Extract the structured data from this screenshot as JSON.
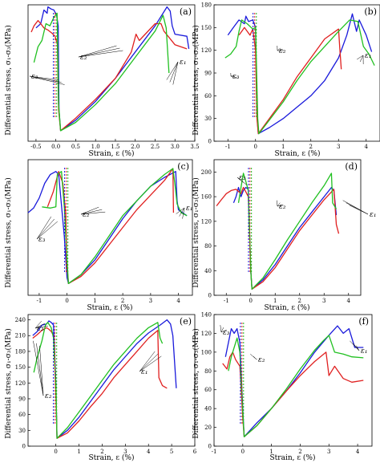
{
  "figure": {
    "ylabel": "Differential stress, σ₁-σ₃(MPa)",
    "xlabel": "Strain, ε (%)"
  },
  "chart_data": [
    {
      "type": "line",
      "label": "(a)",
      "xlim": [
        -0.7,
        3.5
      ],
      "ylim": [
        0,
        130
      ],
      "xticks": [
        -0.5,
        0.0,
        0.5,
        1.0,
        1.5,
        2.0,
        2.5,
        3.0,
        3.5
      ],
      "xtick_labels": [
        "-0.5",
        "0.0",
        "0.5",
        "1.0",
        "1.5",
        "2.0",
        "2.5",
        "3.0",
        "3.5"
      ],
      "yticks": [],
      "ytick_labels": [],
      "annotations": [
        "ε₂",
        "ε₃",
        "ε₁"
      ],
      "series": [
        {
          "color": "#1a1adb",
          "x": [
            -0.5,
            -0.38,
            -0.3,
            -0.22,
            -0.2,
            -0.12,
            -0.05,
            0.02,
            0.06,
            0.08,
            0.12,
            0.5,
            1.0,
            1.5,
            2.0,
            2.5,
            2.8,
            2.88,
            2.93,
            3.0,
            3.3,
            3.35
          ],
          "y": [
            108,
            112,
            125,
            122,
            128,
            126,
            125,
            120,
            110,
            30,
            10,
            20,
            38,
            60,
            85,
            110,
            128,
            124,
            110,
            102,
            100,
            88
          ]
        },
        {
          "color": "#e02020",
          "x": [
            -0.62,
            -0.55,
            -0.45,
            -0.38,
            -0.3,
            -0.2,
            -0.1,
            -0.02,
            0.04,
            0.07,
            0.12,
            0.5,
            1.0,
            1.5,
            1.9,
            2.02,
            2.1,
            2.5,
            2.65,
            2.72,
            3.0,
            3.3
          ],
          "y": [
            104,
            110,
            115,
            112,
            108,
            106,
            103,
            100,
            92,
            30,
            10,
            22,
            40,
            60,
            85,
            102,
            96,
            112,
            112,
            105,
            92,
            88
          ]
        },
        {
          "color": "#20c020",
          "x": [
            -0.55,
            -0.45,
            -0.35,
            -0.25,
            -0.15,
            -0.05,
            0.03,
            0.07,
            0.12,
            0.5,
            1.0,
            1.5,
            2.0,
            2.5,
            2.7,
            2.78,
            2.85
          ],
          "y": [
            75,
            90,
            96,
            112,
            110,
            118,
            122,
            35,
            10,
            18,
            35,
            55,
            80,
            105,
            120,
            108,
            65
          ]
        }
      ]
    },
    {
      "type": "line",
      "label": "(b)",
      "xlim": [
        -1.5,
        4.5
      ],
      "ylim": [
        0,
        180
      ],
      "xticks": [
        -1,
        0,
        1,
        2,
        3,
        4
      ],
      "xtick_labels": [
        "-1",
        "0",
        "1",
        "2",
        "3",
        "4"
      ],
      "yticks": [
        0,
        30,
        60,
        90,
        120,
        150,
        180
      ],
      "ytick_labels": [
        "0",
        "30",
        "60",
        "90",
        "120",
        "150",
        "180"
      ],
      "annotations": [
        "ε₂",
        "ε₃",
        "ε₁"
      ],
      "series": [
        {
          "color": "#1a1adb",
          "x": [
            -1.0,
            -0.8,
            -0.6,
            -0.4,
            -0.35,
            -0.25,
            -0.1,
            0.0,
            0.05,
            0.1,
            0.5,
            1.0,
            1.5,
            2.0,
            2.5,
            3.0,
            3.3,
            3.5,
            3.65,
            3.75,
            4.0,
            4.2
          ],
          "y": [
            140,
            150,
            160,
            155,
            165,
            158,
            160,
            150,
            35,
            10,
            18,
            30,
            45,
            60,
            80,
            110,
            140,
            168,
            145,
            160,
            140,
            118
          ]
        },
        {
          "color": "#e02020",
          "x": [
            -0.6,
            -0.5,
            -0.4,
            -0.3,
            -0.2,
            -0.1,
            0.0,
            0.05,
            0.1,
            0.5,
            1.0,
            1.5,
            2.0,
            2.5,
            3.0,
            3.05,
            3.1
          ],
          "y": [
            140,
            145,
            150,
            145,
            140,
            148,
            120,
            30,
            10,
            30,
            55,
            85,
            110,
            135,
            148,
            120,
            95
          ]
        },
        {
          "color": "#20c020",
          "x": [
            -1.1,
            -0.9,
            -0.7,
            -0.6,
            -0.5,
            -0.3,
            -0.1,
            0.0,
            0.08,
            0.12,
            0.5,
            1.0,
            1.5,
            2.0,
            2.5,
            3.0,
            3.4,
            3.7,
            3.9,
            4.1,
            4.3
          ],
          "y": [
            110,
            115,
            125,
            145,
            160,
            155,
            148,
            150,
            30,
            10,
            28,
            52,
            80,
            105,
            125,
            145,
            160,
            158,
            125,
            115,
            100
          ]
        }
      ]
    },
    {
      "type": "line",
      "label": "(c)",
      "xlim": [
        -1.4,
        4.5
      ],
      "ylim": [
        0,
        230
      ],
      "xticks": [
        -1,
        0,
        1,
        2,
        3,
        4
      ],
      "xtick_labels": [
        "-1",
        "0",
        "1",
        "2",
        "3",
        "4"
      ],
      "yticks": [],
      "ytick_labels": [],
      "annotations": [
        "ε₂",
        "ε₃",
        "ε₁"
      ],
      "series": [
        {
          "color": "#1a1adb",
          "x": [
            -1.4,
            -1.2,
            -1.0,
            -0.8,
            -0.6,
            -0.4,
            -0.3,
            -0.1,
            0.0,
            0.05,
            0.5,
            1.0,
            1.5,
            2.0,
            2.5,
            3.0,
            3.5,
            3.9,
            3.95,
            4.0,
            4.3
          ],
          "y": [
            140,
            148,
            165,
            190,
            205,
            210,
            205,
            100,
            30,
            20,
            35,
            60,
            95,
            130,
            160,
            185,
            200,
            210,
            160,
            145,
            135
          ]
        },
        {
          "color": "#e02020",
          "x": [
            -0.7,
            -0.5,
            -0.3,
            -0.15,
            -0.05,
            0.0,
            0.05,
            0.5,
            1.0,
            1.5,
            2.0,
            2.5,
            3.0,
            3.5,
            3.8,
            3.82
          ],
          "y": [
            150,
            175,
            210,
            190,
            140,
            50,
            20,
            32,
            55,
            85,
            115,
            145,
            170,
            195,
            215,
            140
          ]
        },
        {
          "color": "#20c020",
          "x": [
            -0.9,
            -0.6,
            -0.4,
            -0.35,
            -0.2,
            -0.1,
            0.0,
            0.05,
            0.5,
            1.0,
            1.5,
            2.0,
            2.5,
            3.0,
            3.5,
            3.8,
            3.88,
            3.95,
            4.1,
            4.3
          ],
          "y": [
            150,
            148,
            150,
            205,
            210,
            150,
            60,
            20,
            35,
            65,
            100,
            135,
            160,
            185,
            205,
            215,
            185,
            155,
            140,
            135
          ]
        }
      ]
    },
    {
      "type": "line",
      "label": "(d)",
      "xlim": [
        -1.5,
        4.5
      ],
      "ylim": [
        0,
        220
      ],
      "xticks": [
        -1,
        0,
        1,
        2,
        3,
        4
      ],
      "xtick_labels": [
        "-1",
        "0",
        "1",
        "2",
        "3",
        "4"
      ],
      "yticks": [
        0,
        40,
        80,
        120,
        160,
        200
      ],
      "ytick_labels": [
        "0",
        "40",
        "80",
        "120",
        "160",
        "200"
      ],
      "annotations": [
        "ε₃",
        "ε₂",
        "ε₁"
      ],
      "series": [
        {
          "color": "#1a1adb",
          "x": [
            -0.7,
            -0.6,
            -0.5,
            -0.4,
            -0.3,
            -0.2,
            -0.1,
            0.0,
            0.05,
            0.5,
            1.0,
            1.5,
            2.0,
            2.5,
            3.0,
            3.3,
            3.4,
            3.5
          ],
          "y": [
            150,
            160,
            175,
            160,
            170,
            175,
            172,
            40,
            10,
            25,
            50,
            80,
            110,
            135,
            160,
            175,
            170,
            130
          ]
        },
        {
          "color": "#e02020",
          "x": [
            -1.4,
            -1.2,
            -1.0,
            -0.8,
            -0.6,
            -0.4,
            -0.3,
            -0.2,
            -0.1,
            0.0,
            0.05,
            0.5,
            1.0,
            1.5,
            2.0,
            2.5,
            3.0,
            3.4,
            3.5,
            3.6
          ],
          "y": [
            145,
            155,
            165,
            170,
            172,
            165,
            175,
            168,
            160,
            40,
            10,
            22,
            45,
            75,
            105,
            130,
            155,
            172,
            115,
            100
          ]
        },
        {
          "color": "#20c020",
          "x": [
            -0.5,
            -0.4,
            -0.3,
            -0.2,
            -0.1,
            0.0,
            0.05,
            0.5,
            1.0,
            1.5,
            2.0,
            2.5,
            3.0,
            3.3,
            3.35,
            3.5
          ],
          "y": [
            150,
            175,
            198,
            185,
            170,
            40,
            10,
            28,
            58,
            90,
            120,
            150,
            178,
            198,
            150,
            140
          ]
        }
      ]
    },
    {
      "type": "line",
      "label": "(e)",
      "xlim": [
        -1.2,
        6.0
      ],
      "ylim": [
        0,
        250
      ],
      "xticks": [
        0,
        1,
        2,
        3,
        4,
        5,
        6
      ],
      "xtick_labels": [
        "0",
        "1",
        "2",
        "3",
        "4",
        "5",
        "6"
      ],
      "yticks": [
        0,
        30,
        60,
        90,
        120,
        150,
        180,
        210,
        240
      ],
      "ytick_labels": [
        "0",
        "30",
        "60",
        "90",
        "120",
        "150",
        "180",
        "210",
        "240"
      ],
      "annotations": [
        "ε₃",
        "ε₂",
        "ε₁"
      ],
      "series": [
        {
          "color": "#1a1adb",
          "x": [
            -1.0,
            -0.8,
            -0.6,
            -0.4,
            -0.3,
            -0.2,
            -0.1,
            0.0,
            0.05,
            0.5,
            1.0,
            1.5,
            2.0,
            2.5,
            3.0,
            3.5,
            4.0,
            4.5,
            4.8,
            4.95,
            5.05,
            5.2
          ],
          "y": [
            210,
            218,
            230,
            232,
            238,
            235,
            230,
            120,
            15,
            30,
            55,
            85,
            115,
            145,
            170,
            195,
            215,
            230,
            240,
            232,
            210,
            110
          ]
        },
        {
          "color": "#e02020",
          "x": [
            -1.0,
            -0.8,
            -0.6,
            -0.4,
            -0.3,
            -0.2,
            -0.1,
            0.0,
            0.05,
            0.5,
            1.0,
            1.5,
            2.0,
            2.5,
            3.0,
            3.5,
            4.0,
            4.4,
            4.45,
            4.6,
            4.8
          ],
          "y": [
            205,
            212,
            220,
            225,
            222,
            218,
            210,
            100,
            15,
            25,
            48,
            75,
            100,
            130,
            155,
            180,
            205,
            220,
            130,
            115,
            110
          ]
        },
        {
          "color": "#20c020",
          "x": [
            -0.95,
            -0.8,
            -0.6,
            -0.45,
            -0.35,
            -0.2,
            -0.1,
            0.0,
            0.05,
            0.5,
            1.0,
            1.5,
            2.0,
            2.5,
            3.0,
            3.5,
            4.0,
            4.4,
            4.5,
            4.6
          ],
          "y": [
            140,
            170,
            200,
            230,
            235,
            225,
            205,
            110,
            15,
            35,
            65,
            95,
            125,
            155,
            180,
            205,
            225,
            235,
            205,
            195
          ]
        }
      ]
    },
    {
      "type": "line",
      "label": "(f)",
      "xlim": [
        -1.0,
        4.5
      ],
      "ylim": [
        0,
        140
      ],
      "xticks": [
        -1,
        0,
        1,
        2,
        3,
        4
      ],
      "xtick_labels": [
        "-1",
        "0",
        "1",
        "2",
        "3",
        "4"
      ],
      "yticks": [
        0,
        20,
        40,
        60,
        80,
        100,
        120,
        140
      ],
      "ytick_labels": [
        "0",
        "20",
        "40",
        "60",
        "80",
        "100",
        "120",
        "140"
      ],
      "annotations": [
        "ε₃",
        "ε₂",
        "ε₁"
      ],
      "series": [
        {
          "color": "#1a1adb",
          "x": [
            -0.6,
            -0.5,
            -0.4,
            -0.3,
            -0.2,
            -0.1,
            0.0,
            0.05,
            0.5,
            1.0,
            1.5,
            2.0,
            2.5,
            3.0,
            3.3,
            3.5,
            3.7,
            3.9,
            4.2
          ],
          "y": [
            95,
            110,
            125,
            120,
            125,
            110,
            40,
            10,
            25,
            40,
            58,
            78,
            100,
            118,
            128,
            120,
            125,
            105,
            105
          ]
        },
        {
          "color": "#e02020",
          "x": [
            -0.7,
            -0.55,
            -0.45,
            -0.35,
            -0.25,
            -0.1,
            0.0,
            0.05,
            0.5,
            1.0,
            1.5,
            2.0,
            2.5,
            2.9,
            3.0,
            3.2,
            3.5,
            3.8,
            4.2
          ],
          "y": [
            88,
            82,
            95,
            100,
            92,
            85,
            30,
            10,
            22,
            40,
            58,
            75,
            90,
            100,
            75,
            85,
            72,
            68,
            70
          ]
        },
        {
          "color": "#20c020",
          "x": [
            -0.5,
            -0.4,
            -0.3,
            -0.2,
            -0.1,
            0.0,
            0.05,
            0.5,
            1.0,
            1.5,
            2.0,
            2.5,
            2.8,
            3.0,
            3.2,
            3.5,
            3.8,
            4.2
          ],
          "y": [
            80,
            95,
            105,
            115,
            100,
            35,
            10,
            22,
            40,
            60,
            82,
            102,
            112,
            118,
            100,
            98,
            95,
            94
          ]
        }
      ]
    }
  ]
}
